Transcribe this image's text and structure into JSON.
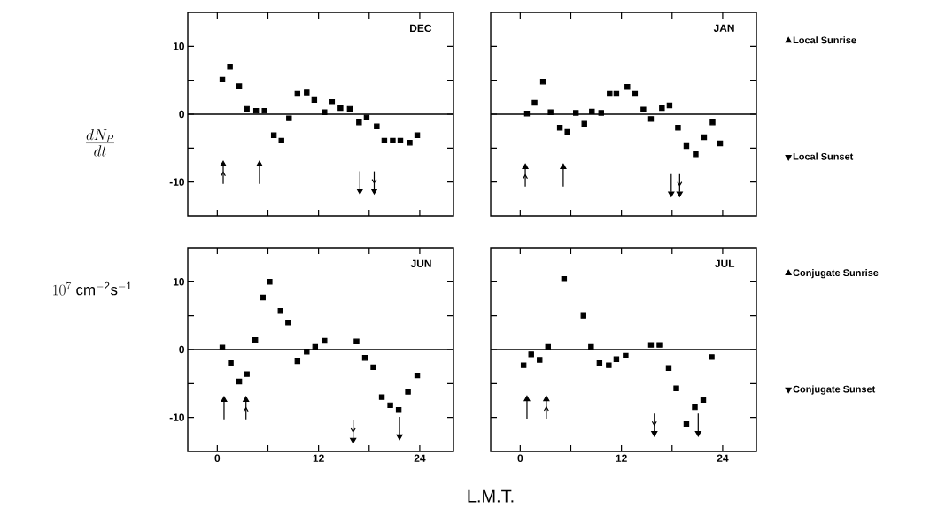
{
  "chart_data": [
    {
      "type": "scatter",
      "title": "DEC",
      "ylabel": "\\frac{dN_P}{dt}",
      "xlim": [
        -3.5,
        28
      ],
      "ylim": [
        -15,
        15
      ],
      "xticks": [
        0,
        12,
        24
      ],
      "yticks": [
        -10,
        0,
        10
      ],
      "tick_labels": "y",
      "ref_lines": [
        {
          "axis": "y",
          "value": 0
        }
      ],
      "series": [
        {
          "color": "#000000",
          "marker": "square",
          "x": [
            0.6,
            1.5,
            2.6,
            3.5,
            4.6,
            5.6,
            6.7,
            7.6,
            8.5,
            9.5,
            10.6,
            11.5,
            12.7,
            13.6,
            14.6,
            15.7,
            16.8,
            17.7,
            18.9,
            19.8,
            20.8,
            21.7,
            22.8,
            23.7
          ],
          "values": [
            5.1,
            7.0,
            4.1,
            0.8,
            0.5,
            0.5,
            -3.1,
            -3.9,
            -0.6,
            3.0,
            3.2,
            2.1,
            0.3,
            1.8,
            0.9,
            0.8,
            -1.2,
            -0.5,
            -1.8,
            -3.9,
            -3.9,
            -3.9,
            -4.2,
            -3.1
          ]
        },
        {
          "color": "#000000",
          "marker": "triangle",
          "x": [
            5.0
          ],
          "values": [
            -7.4
          ]
        },
        {
          "color": "#000000",
          "marker": "triangle",
          "x": [
            16.9
          ],
          "values": [
            -11.3
          ]
        },
        {
          "color": "#000000",
          "marker": "triangle",
          "x": [
            0.7
          ],
          "values": [
            -7.4
          ]
        },
        {
          "color": "#000000",
          "marker": "triangle",
          "x": [
            18.6
          ],
          "values": [
            -11.3
          ]
        }
      ]
    },
    {
      "type": "scatter",
      "title": "JAN",
      "xlim": [
        -3.5,
        28
      ],
      "ylim": [
        -15,
        15
      ],
      "xticks": [
        0,
        12,
        24
      ],
      "yticks": [
        -10,
        0,
        10
      ],
      "tick_labels": false,
      "ref_lines": [
        {
          "axis": "y",
          "value": 0
        }
      ],
      "legend": "right",
      "series": [
        {
          "color": "#000000",
          "marker": "square",
          "x": [
            0.8,
            1.7,
            2.7,
            3.6,
            4.7,
            5.6,
            6.6,
            7.6,
            8.5,
            9.6,
            10.6,
            11.4,
            12.7,
            13.6,
            14.6,
            15.5,
            16.8,
            17.7,
            18.7,
            19.7,
            20.8,
            21.8,
            22.8,
            23.7
          ],
          "values": [
            0.1,
            1.7,
            4.8,
            0.3,
            -2.0,
            -2.6,
            0.2,
            -1.4,
            0.4,
            0.2,
            3.0,
            3.0,
            4.0,
            3.0,
            0.7,
            -0.7,
            0.9,
            1.3,
            -2.0,
            -4.7,
            -5.9,
            -3.4,
            -1.2,
            -4.3
          ]
        },
        {
          "name": "Local Sunrise",
          "color": "#000000",
          "marker": "triangle",
          "x": [
            5.1
          ],
          "values": [
            -7.8
          ]
        },
        {
          "name": "Local Sunset",
          "color": "#000000",
          "marker": "triangle",
          "x": [
            17.9
          ],
          "values": [
            -11.7
          ]
        },
        {
          "name": "Conjugate Sunrise",
          "color": "#000000",
          "marker": "triangle",
          "x": [
            0.6
          ],
          "values": [
            -7.8
          ]
        },
        {
          "name": "Conjugate Sunset",
          "color": "#000000",
          "marker": "triangle",
          "x": [
            18.9
          ],
          "values": [
            -11.7
          ]
        }
      ]
    },
    {
      "type": "scatter",
      "title": "JUN",
      "xlabel": "L.M.T.",
      "ylabel": "10^{7}\\ \\mathrm{cm^{-2}s^{-1}}",
      "xlim": [
        -3.5,
        28
      ],
      "ylim": [
        -15,
        15
      ],
      "xticks": [
        0,
        12,
        24
      ],
      "yticks": [
        -10,
        0,
        10
      ],
      "ref_lines": [
        {
          "axis": "y",
          "value": 0
        }
      ],
      "series": [
        {
          "color": "#000000",
          "marker": "square",
          "x": [
            0.6,
            1.6,
            2.6,
            3.5,
            4.5,
            5.4,
            6.2,
            7.5,
            8.4,
            9.5,
            10.6,
            11.6,
            12.7,
            16.5,
            17.5,
            18.5,
            19.5,
            20.5,
            21.5,
            22.6,
            23.7
          ],
          "values": [
            0.3,
            -2.0,
            -4.7,
            -3.6,
            1.4,
            7.7,
            10.0,
            5.7,
            4.0,
            -1.7,
            -0.3,
            0.4,
            1.3,
            1.2,
            -1.2,
            -2.6,
            -7.0,
            -8.2,
            -8.9,
            -6.2,
            -3.8
          ]
        },
        {
          "color": "#000000",
          "marker": "triangle",
          "x": [
            0.8
          ],
          "values": [
            -7.4
          ]
        },
        {
          "color": "#000000",
          "marker": "triangle",
          "x": [
            21.6
          ],
          "values": [
            -12.8
          ]
        },
        {
          "color": "#000000",
          "marker": "triangle",
          "x": [
            3.4
          ],
          "values": [
            -7.4
          ]
        },
        {
          "color": "#000000",
          "marker": "triangle",
          "x": [
            16.1
          ],
          "values": [
            -13.3
          ]
        }
      ]
    },
    {
      "type": "scatter",
      "title": "JUL",
      "xlim": [
        -3.5,
        28
      ],
      "ylim": [
        -15,
        15
      ],
      "xticks": [
        0,
        12,
        24
      ],
      "yticks": [
        -10,
        0,
        10
      ],
      "tick_labels": "x",
      "ref_lines": [
        {
          "axis": "y",
          "value": 0
        }
      ],
      "series": [
        {
          "color": "#000000",
          "marker": "square",
          "x": [
            0.4,
            1.3,
            2.3,
            3.3,
            5.2,
            7.5,
            8.4,
            9.4,
            10.5,
            11.4,
            12.5,
            15.5,
            16.5,
            17.6,
            18.5,
            19.7,
            20.7,
            21.7,
            22.7
          ],
          "values": [
            -2.3,
            -0.7,
            -1.5,
            0.4,
            10.4,
            5.0,
            0.4,
            -2.0,
            -2.3,
            -1.4,
            -0.9,
            0.7,
            0.7,
            -2.7,
            -5.7,
            -11.0,
            -8.5,
            -7.4,
            -1.1
          ]
        },
        {
          "color": "#000000",
          "marker": "triangle",
          "x": [
            0.8
          ],
          "values": [
            -7.3
          ]
        },
        {
          "color": "#000000",
          "marker": "triangle",
          "x": [
            21.1
          ],
          "values": [
            -12.3
          ]
        },
        {
          "color": "#000000",
          "marker": "triangle",
          "x": [
            3.1
          ],
          "values": [
            -7.3
          ]
        },
        {
          "color": "#000000",
          "marker": "triangle",
          "x": [
            15.9
          ],
          "values": [
            -12.3
          ]
        }
      ]
    }
  ]
}
